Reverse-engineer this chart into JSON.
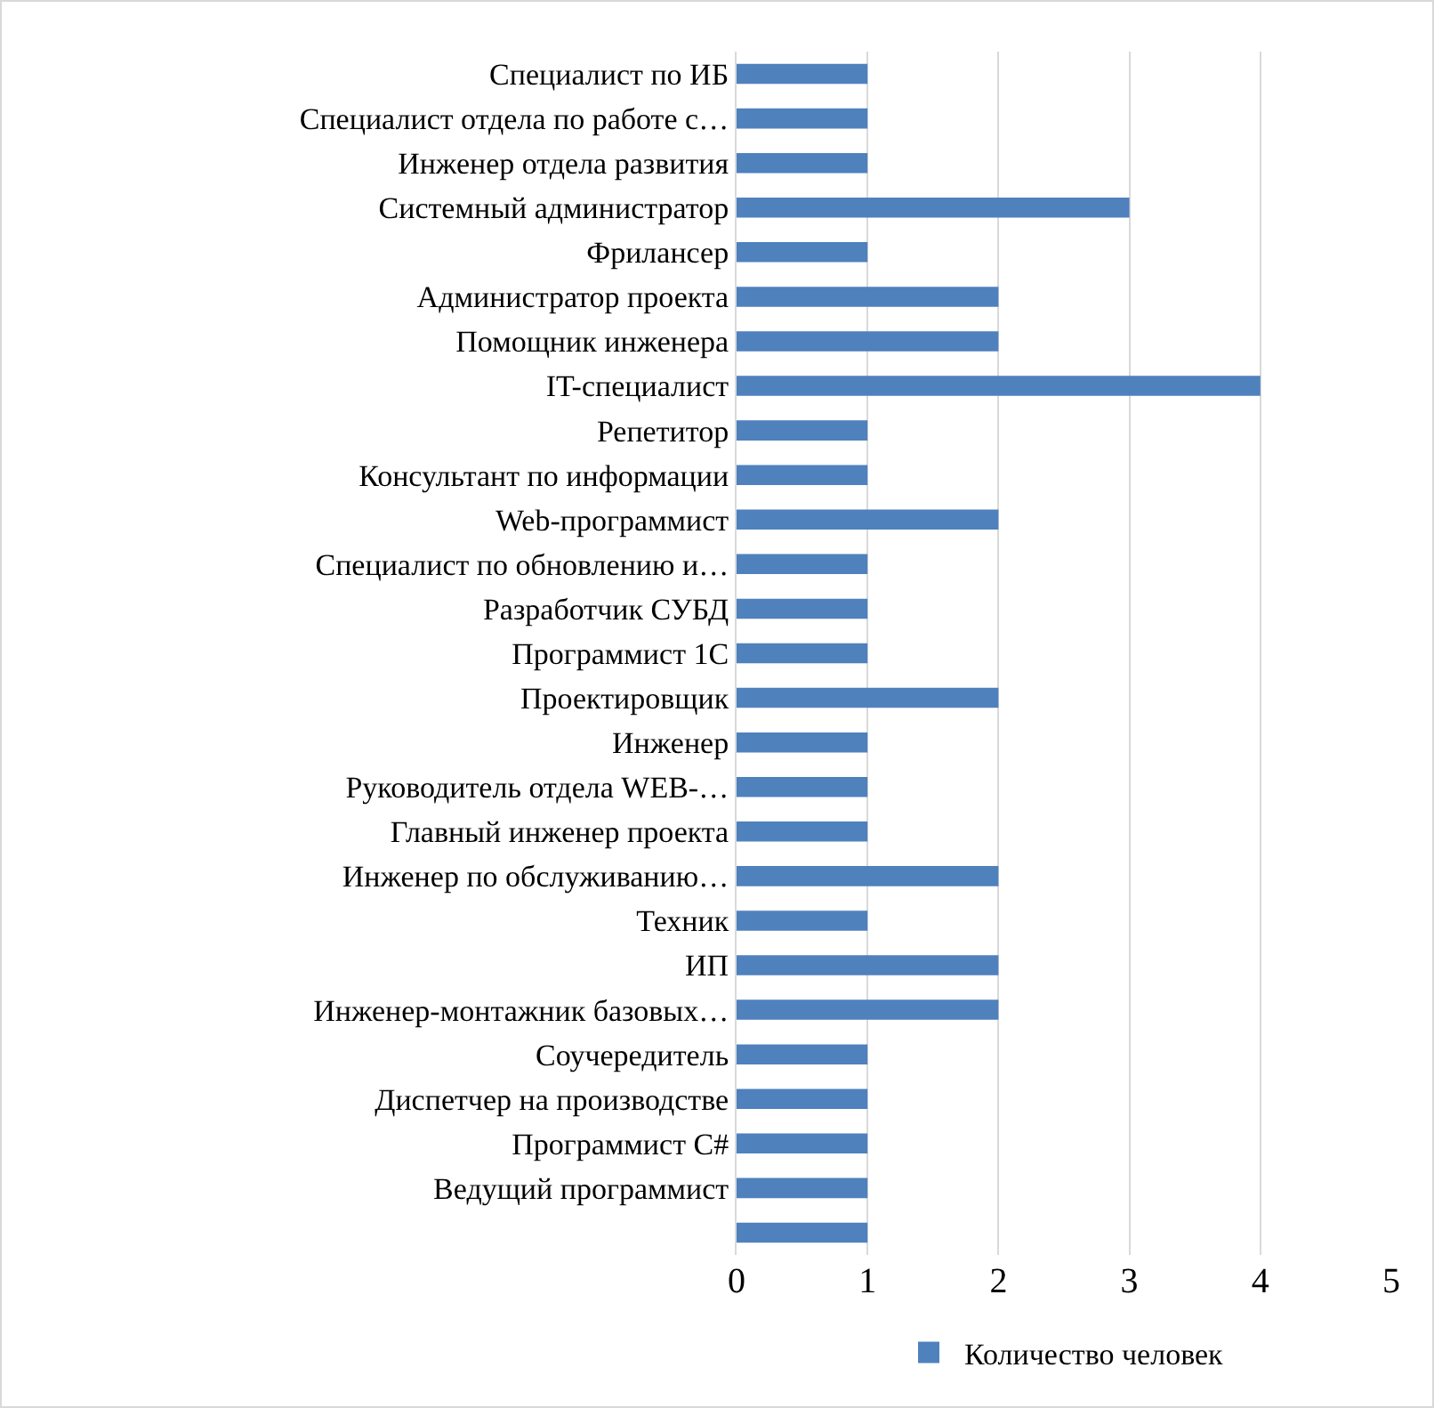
{
  "chart_data": {
    "type": "bar",
    "orientation": "horizontal",
    "categories": [
      "Специалист по ИБ",
      "Специалист отдела по работе с…",
      "Инженер отдела развития",
      "Системный администратор",
      "Фрилансер",
      "Администратор проекта",
      "Помощник инженера",
      "IT-специалист",
      "Репетитор",
      "Консультант по информации",
      "Web-программист",
      "Специалист по обновлению и…",
      "Разработчик СУБД",
      "Программист 1С",
      "Проектировщик",
      "Инженер",
      "Руководитель отдела WEB-…",
      "Главный инженер проекта",
      "Инженер по обслуживанию…",
      "Техник",
      "ИП",
      "Инженер-монтажник базовых…",
      "Соучередитель",
      "Диспетчер на производстве",
      "Программист С#",
      "Ведущий программист",
      null
    ],
    "series": [
      {
        "name": "Количество человек",
        "color": "#4f81bd",
        "values": [
          1,
          1,
          1,
          3,
          1,
          2,
          2,
          4,
          1,
          1,
          2,
          1,
          1,
          1,
          2,
          1,
          1,
          1,
          2,
          1,
          2,
          2,
          1,
          1,
          1,
          1,
          1
        ]
      }
    ],
    "xlim": [
      0,
      5
    ],
    "xticks": [
      0,
      1,
      2,
      3,
      4,
      5
    ],
    "grid": "x",
    "legend": "bottom"
  }
}
